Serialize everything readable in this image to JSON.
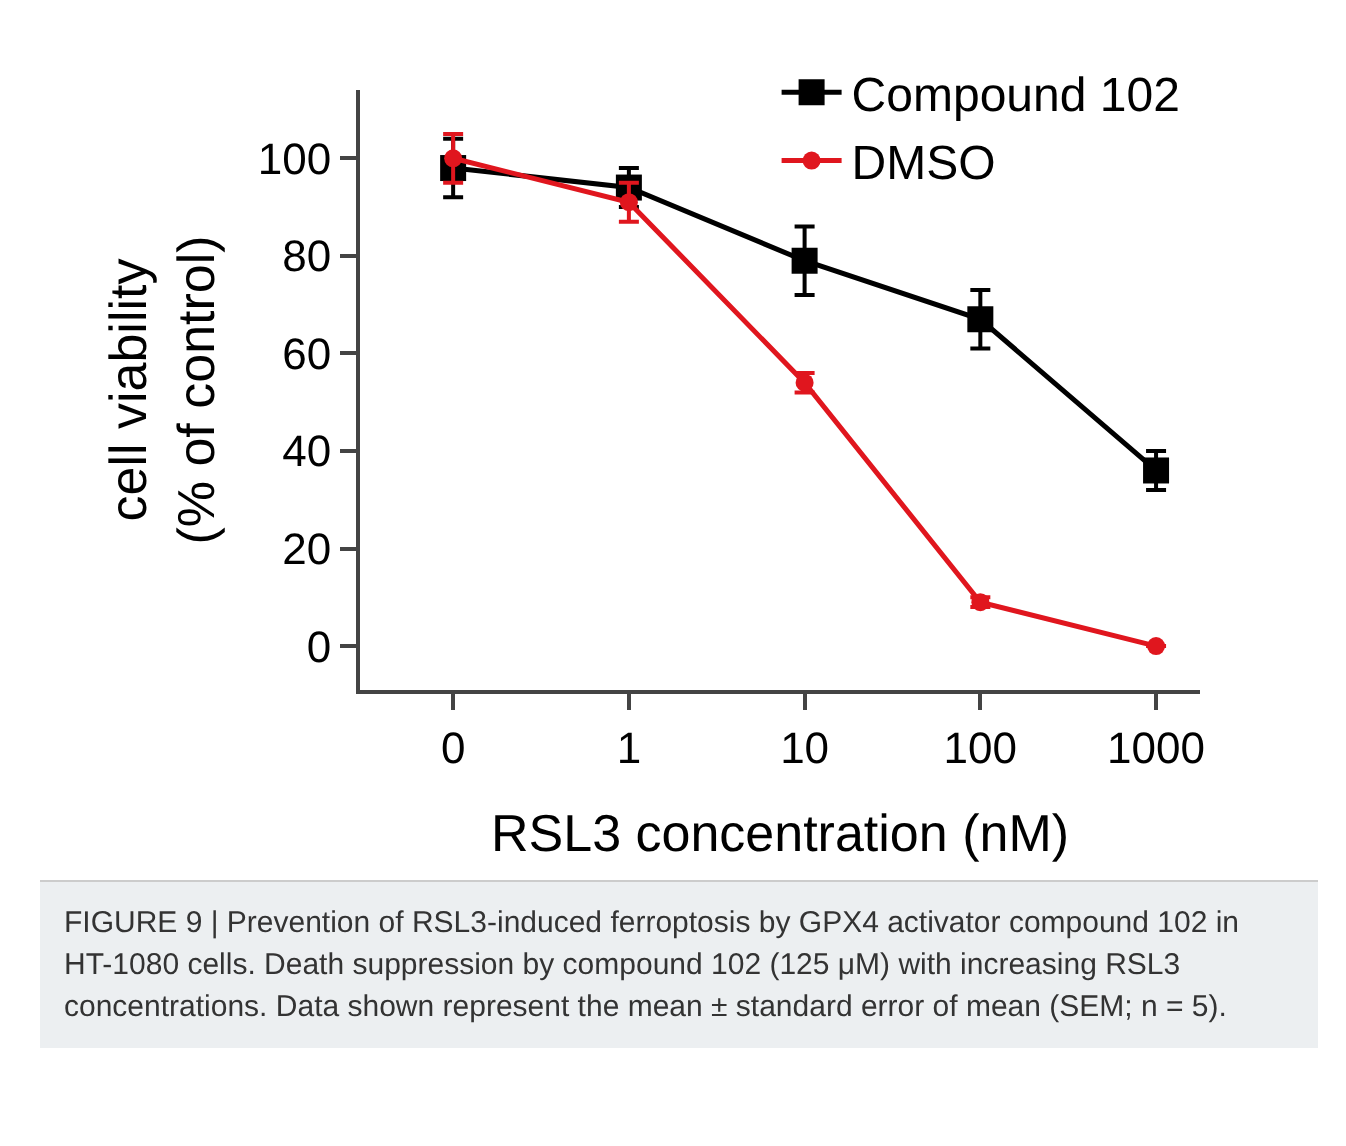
{
  "chart_data": {
    "type": "line",
    "xlabel": "RSL3 concentration (nM)",
    "ylabel": "cell viability\n(% of control)",
    "categories": [
      "0",
      "1",
      "10",
      "100",
      "1000"
    ],
    "series": [
      {
        "name": "Compound 102",
        "color": "#000000",
        "marker": "square",
        "values": [
          98,
          94,
          79,
          67,
          36
        ],
        "errors": [
          6,
          4,
          7,
          6,
          4
        ]
      },
      {
        "name": "DMSO",
        "color": "#e0161e",
        "marker": "circle",
        "values": [
          100,
          91,
          54,
          9,
          0
        ],
        "errors": [
          5,
          4,
          2,
          1,
          null
        ]
      }
    ],
    "ylim": [
      -9,
      114
    ],
    "yticks": [
      0,
      20,
      40,
      60,
      80,
      100
    ],
    "grid": false,
    "legend": "top right",
    "line_style": "solid",
    "annotations": [
      "FIGURE 9 | Prevention of RSL3-induced ferroptosis by GPX4 activator compound 102 in HT-1080 cells. Death suppression by compound 102 (125 μM) with increasing RSL3 concentrations. Data shown represent the mean ± standard error of mean (SEM; n = 5)."
    ]
  }
}
